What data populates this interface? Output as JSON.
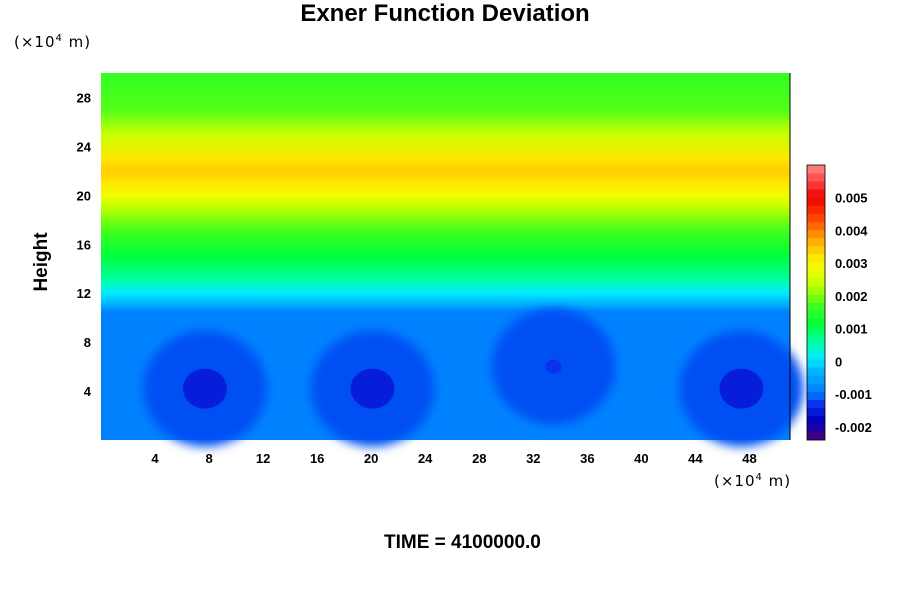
{
  "chart_data": {
    "type": "heatmap",
    "title": "Exner Function Deviation",
    "ylabel": "Height",
    "y_unit": "(×10⁴ m)",
    "x_unit": "(×10⁴ m)",
    "unit_prefix": "(×10",
    "unit_exp": "4",
    "unit_suffix": " m)",
    "x_ticks": [
      "4",
      "8",
      "12",
      "16",
      "20",
      "24",
      "28",
      "32",
      "36",
      "40",
      "44",
      "48"
    ],
    "y_ticks": [
      "4",
      "8",
      "12",
      "16",
      "20",
      "24",
      "28"
    ],
    "xlim": [
      0,
      51
    ],
    "ylim": [
      0,
      30
    ],
    "colorbar": {
      "ticks": [
        "0.005",
        "0.004",
        "0.003",
        "0.002",
        "0.001",
        "0",
        "-0.001",
        "-0.002"
      ],
      "range": [
        -0.0024,
        0.006
      ]
    },
    "profile": [
      {
        "height": 0,
        "value": -0.0009
      },
      {
        "height": 10.5,
        "value": -0.0009
      },
      {
        "height": 11,
        "value": -0.0004
      },
      {
        "height": 12,
        "value": 0.0001
      },
      {
        "height": 13,
        "value": 0.0006
      },
      {
        "height": 15,
        "value": 0.0011
      },
      {
        "height": 17,
        "value": 0.0017
      },
      {
        "height": 19,
        "value": 0.0023
      },
      {
        "height": 20,
        "value": 0.0028
      },
      {
        "height": 21,
        "value": 0.0032
      },
      {
        "height": 22,
        "value": 0.0034
      },
      {
        "height": 23,
        "value": 0.0032
      },
      {
        "height": 25,
        "value": 0.0024
      },
      {
        "height": 27,
        "value": 0.0018
      },
      {
        "height": 30,
        "value": 0.0016
      }
    ],
    "minima": [
      {
        "x": 7.7,
        "height": 4.2,
        "value": -0.0015
      },
      {
        "x": 20.1,
        "height": 4.2,
        "value": -0.0015
      },
      {
        "x": 33.5,
        "height": 6,
        "value": -0.0013
      },
      {
        "x": 47.4,
        "height": 4.2,
        "value": -0.0015
      }
    ]
  },
  "footer": {
    "time_label": "TIME = 4100000.0"
  }
}
